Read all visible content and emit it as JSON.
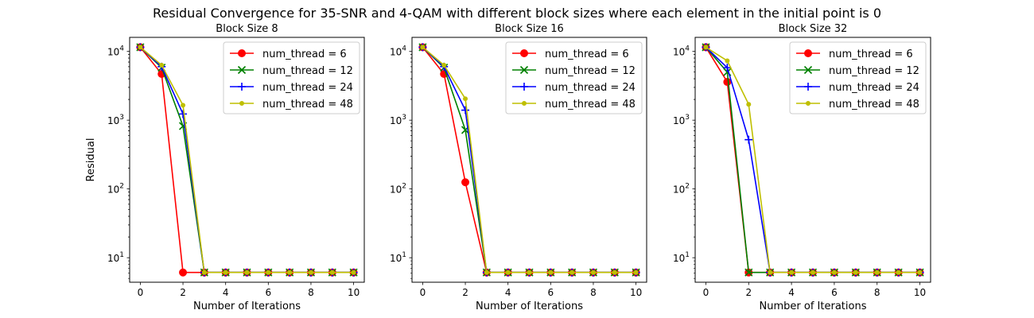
{
  "figure": {
    "suptitle": "Residual Convergence for 35-SNR and 4-QAM with different block sizes where each element in the initial point is 0"
  },
  "chart_data": [
    {
      "type": "line",
      "title": "Block Size 8",
      "xlabel": "Number of Iterations",
      "ylabel": "Residual",
      "yscale": "log",
      "xlim": [
        -0.5,
        10.5
      ],
      "ylim": [
        4.4,
        16000
      ],
      "xticks": [
        0,
        2,
        4,
        6,
        8,
        10
      ],
      "yticks": [
        {
          "value": 10,
          "label": "10^1"
        },
        {
          "value": 100,
          "label": "10^2"
        },
        {
          "value": 1000,
          "label": "10^3"
        },
        {
          "value": 10000,
          "label": "10^4"
        }
      ],
      "legend_position": "top-right",
      "x": [
        0,
        1,
        2,
        3,
        4,
        5,
        6,
        7,
        8,
        9,
        10
      ],
      "series": [
        {
          "name": "num_thread = 6",
          "color": "#ff0000",
          "marker": "circle",
          "values": [
            11500,
            4700,
            6.1,
            6.1,
            6.1,
            6.1,
            6.1,
            6.1,
            6.1,
            6.1,
            6.1
          ]
        },
        {
          "name": "num_thread = 12",
          "color": "#008000",
          "marker": "x",
          "values": [
            11500,
            5800,
            820,
            6.1,
            6.1,
            6.1,
            6.1,
            6.1,
            6.1,
            6.1,
            6.1
          ]
        },
        {
          "name": "num_thread = 24",
          "color": "#0000ff",
          "marker": "plus",
          "values": [
            11500,
            6000,
            1230,
            6.1,
            6.1,
            6.1,
            6.1,
            6.1,
            6.1,
            6.1,
            6.1
          ]
        },
        {
          "name": "num_thread = 48",
          "color": "#bfbf00",
          "marker": "dot",
          "values": [
            11500,
            6300,
            1650,
            6.1,
            6.1,
            6.1,
            6.1,
            6.1,
            6.1,
            6.1,
            6.1
          ]
        }
      ]
    },
    {
      "type": "line",
      "title": "Block Size 16",
      "xlabel": "Number of Iterations",
      "ylabel": "",
      "yscale": "log",
      "xlim": [
        -0.5,
        10.5
      ],
      "ylim": [
        4.4,
        16000
      ],
      "xticks": [
        0,
        2,
        4,
        6,
        8,
        10
      ],
      "yticks": [
        {
          "value": 10,
          "label": "10^1"
        },
        {
          "value": 100,
          "label": "10^2"
        },
        {
          "value": 1000,
          "label": "10^3"
        },
        {
          "value": 10000,
          "label": "10^4"
        }
      ],
      "legend_position": "top-right",
      "x": [
        0,
        1,
        2,
        3,
        4,
        5,
        6,
        7,
        8,
        9,
        10
      ],
      "series": [
        {
          "name": "num_thread = 6",
          "color": "#ff0000",
          "marker": "circle",
          "values": [
            11500,
            4700,
            125,
            6.1,
            6.1,
            6.1,
            6.1,
            6.1,
            6.1,
            6.1,
            6.1
          ]
        },
        {
          "name": "num_thread = 12",
          "color": "#008000",
          "marker": "x",
          "values": [
            11500,
            5800,
            720,
            6.1,
            6.1,
            6.1,
            6.1,
            6.1,
            6.1,
            6.1,
            6.1
          ]
        },
        {
          "name": "num_thread = 24",
          "color": "#0000ff",
          "marker": "plus",
          "values": [
            11500,
            6000,
            1400,
            6.1,
            6.1,
            6.1,
            6.1,
            6.1,
            6.1,
            6.1,
            6.1
          ]
        },
        {
          "name": "num_thread = 48",
          "color": "#bfbf00",
          "marker": "dot",
          "values": [
            11500,
            6300,
            2050,
            6.1,
            6.1,
            6.1,
            6.1,
            6.1,
            6.1,
            6.1,
            6.1
          ]
        }
      ]
    },
    {
      "type": "line",
      "title": "Block Size 32",
      "xlabel": "Number of Iterations",
      "ylabel": "",
      "yscale": "log",
      "xlim": [
        -0.5,
        10.5
      ],
      "ylim": [
        4.4,
        16000
      ],
      "xticks": [
        0,
        2,
        4,
        6,
        8,
        10
      ],
      "yticks": [
        {
          "value": 10,
          "label": "10^1"
        },
        {
          "value": 100,
          "label": "10^2"
        },
        {
          "value": 1000,
          "label": "10^3"
        },
        {
          "value": 10000,
          "label": "10^4"
        }
      ],
      "legend_position": "top-right",
      "x": [
        0,
        1,
        2,
        3,
        4,
        5,
        6,
        7,
        8,
        9,
        10
      ],
      "series": [
        {
          "name": "num_thread = 6",
          "color": "#ff0000",
          "marker": "circle",
          "values": [
            11500,
            3600,
            6.1,
            6.1,
            6.1,
            6.1,
            6.1,
            6.1,
            6.1,
            6.1,
            6.1
          ]
        },
        {
          "name": "num_thread = 12",
          "color": "#008000",
          "marker": "x",
          "values": [
            11500,
            5000,
            6.1,
            6.1,
            6.1,
            6.1,
            6.1,
            6.1,
            6.1,
            6.1,
            6.1
          ]
        },
        {
          "name": "num_thread = 24",
          "color": "#0000ff",
          "marker": "plus",
          "values": [
            11500,
            5800,
            520,
            6.1,
            6.1,
            6.1,
            6.1,
            6.1,
            6.1,
            6.1,
            6.1
          ]
        },
        {
          "name": "num_thread = 48",
          "color": "#bfbf00",
          "marker": "dot",
          "values": [
            11500,
            7300,
            1700,
            6.1,
            6.1,
            6.1,
            6.1,
            6.1,
            6.1,
            6.1,
            6.1
          ]
        }
      ]
    }
  ]
}
